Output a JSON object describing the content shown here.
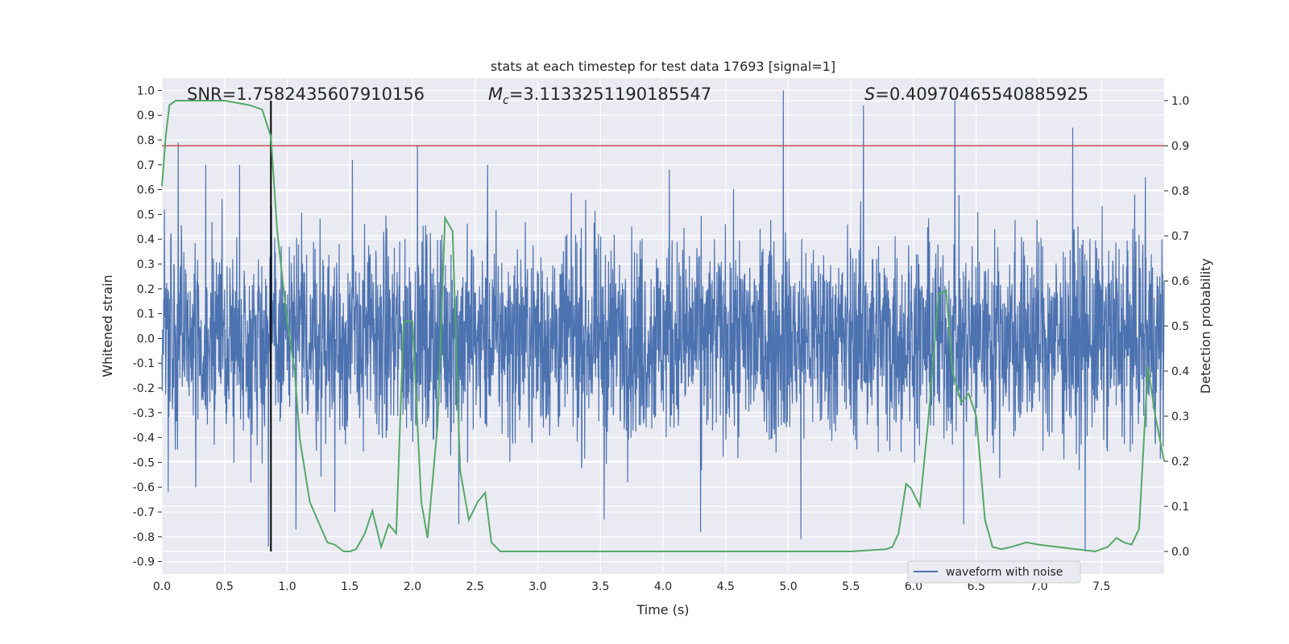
{
  "chart_data": {
    "type": "line",
    "title": "stats at each timestep for test data 17693 [signal=1]",
    "xlabel": "Time (s)",
    "ylabel": "Whitened strain",
    "y2label": "Detection probability",
    "xlim": [
      0.0,
      8.0
    ],
    "ylim": [
      -0.95,
      1.05
    ],
    "y2lim": [
      -0.05,
      1.05
    ],
    "x_ticks": [
      "0.0",
      "0.5",
      "1.0",
      "1.5",
      "2.0",
      "2.5",
      "3.0",
      "3.5",
      "4.0",
      "4.5",
      "5.0",
      "5.5",
      "6.0",
      "6.5",
      "7.0",
      "7.5"
    ],
    "y_ticks": [
      "1.0",
      "0.9",
      "0.8",
      "0.7",
      "0.6",
      "0.5",
      "0.4",
      "0.3",
      "0.2",
      "0.1",
      "0.0",
      "-0.1",
      "-0.2",
      "-0.3",
      "-0.4",
      "-0.5",
      "-0.6",
      "-0.7",
      "-0.8",
      "-0.9"
    ],
    "y2_ticks": [
      "1.0",
      "0.9",
      "0.8",
      "0.7",
      "0.6",
      "0.5",
      "0.4",
      "0.3",
      "0.2",
      "0.1",
      "0.0"
    ],
    "grid": true,
    "legend_position": "lower-right",
    "legend": [
      "waveform with noise"
    ],
    "annotations": {
      "snr_text": "SNR=1.7582435607910156",
      "mc_symbol": "M",
      "mc_sub": "c",
      "mc_value": "=3.1133251190185547",
      "s_symbol": "S",
      "s_value": "=0.40970465540885925"
    },
    "threshold_y": 0.9,
    "vline_x": 0.87,
    "series": [
      {
        "name": "waveform with noise",
        "color": "#4c72b0",
        "kind": "noisy waveform",
        "envelope": 0.45,
        "spikes": [
          {
            "x": 0.02,
            "y": 0.52
          },
          {
            "x": 0.05,
            "y": -0.62
          },
          {
            "x": 0.13,
            "y": 0.79
          },
          {
            "x": 0.27,
            "y": -0.6
          },
          {
            "x": 0.35,
            "y": 0.7
          },
          {
            "x": 0.62,
            "y": 0.7
          },
          {
            "x": 0.85,
            "y": -0.84
          },
          {
            "x": 1.07,
            "y": -0.77
          },
          {
            "x": 1.38,
            "y": -0.7
          },
          {
            "x": 1.52,
            "y": 0.72
          },
          {
            "x": 2.04,
            "y": 0.78
          },
          {
            "x": 2.37,
            "y": -0.75
          },
          {
            "x": 2.6,
            "y": 0.7
          },
          {
            "x": 3.53,
            "y": -0.73
          },
          {
            "x": 4.05,
            "y": 0.68
          },
          {
            "x": 4.3,
            "y": -0.78
          },
          {
            "x": 4.96,
            "y": 1.0
          },
          {
            "x": 5.1,
            "y": -0.81
          },
          {
            "x": 5.6,
            "y": 0.94
          },
          {
            "x": 6.33,
            "y": 0.96
          },
          {
            "x": 6.4,
            "y": -0.75
          },
          {
            "x": 7.27,
            "y": 0.85
          },
          {
            "x": 7.37,
            "y": -0.86
          },
          {
            "x": 7.85,
            "y": 0.65
          }
        ]
      },
      {
        "name": "",
        "color": "#55a868",
        "axis": "right",
        "x": [
          0.0,
          0.03,
          0.06,
          0.11,
          0.2,
          0.5,
          0.7,
          0.8,
          0.87,
          0.92,
          1.0,
          1.06,
          1.1,
          1.18,
          1.32,
          1.38,
          1.45,
          1.5,
          1.55,
          1.62,
          1.68,
          1.75,
          1.81,
          1.87,
          1.93,
          2.0,
          2.07,
          2.12,
          2.2,
          2.26,
          2.32,
          2.38,
          2.45,
          2.52,
          2.58,
          2.63,
          2.7,
          2.8,
          3.0,
          4.0,
          5.0,
          5.5,
          5.78,
          5.83,
          5.88,
          5.94,
          5.98,
          6.05,
          6.12,
          6.2,
          6.26,
          6.31,
          6.38,
          6.44,
          6.5,
          6.57,
          6.63,
          6.7,
          6.78,
          6.9,
          7.0,
          7.3,
          7.45,
          7.55,
          7.62,
          7.68,
          7.74,
          7.8,
          7.87,
          7.93,
          8.0
        ],
        "y": [
          0.81,
          0.92,
          0.99,
          1.0,
          1.0,
          1.0,
          0.99,
          0.98,
          0.92,
          0.71,
          0.51,
          0.4,
          0.25,
          0.11,
          0.02,
          0.015,
          0.0,
          0.0,
          0.005,
          0.04,
          0.09,
          0.01,
          0.06,
          0.04,
          0.51,
          0.51,
          0.11,
          0.03,
          0.28,
          0.74,
          0.71,
          0.18,
          0.07,
          0.11,
          0.13,
          0.02,
          0.0,
          0.0,
          0.0,
          0.0,
          0.0,
          0.0,
          0.005,
          0.01,
          0.04,
          0.15,
          0.14,
          0.1,
          0.3,
          0.57,
          0.58,
          0.4,
          0.33,
          0.35,
          0.3,
          0.07,
          0.01,
          0.005,
          0.01,
          0.02,
          0.015,
          0.005,
          0.0,
          0.01,
          0.03,
          0.02,
          0.015,
          0.05,
          0.41,
          0.3,
          0.2
        ]
      }
    ]
  }
}
